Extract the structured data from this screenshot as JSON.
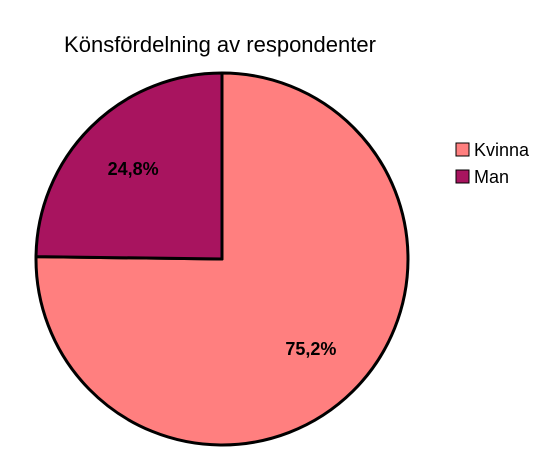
{
  "chart_data": {
    "type": "pie",
    "title": "Könsfördelning av respondenter",
    "slices": [
      {
        "label": "Kvinna",
        "value": 75.2,
        "display": "75,2%",
        "color": "#ff7f7f"
      },
      {
        "label": "Man",
        "value": 24.8,
        "display": "24,8%",
        "color": "#a8145f"
      }
    ],
    "legend": {
      "placement": "right",
      "entries": [
        "Kvinna",
        "Man"
      ]
    }
  }
}
